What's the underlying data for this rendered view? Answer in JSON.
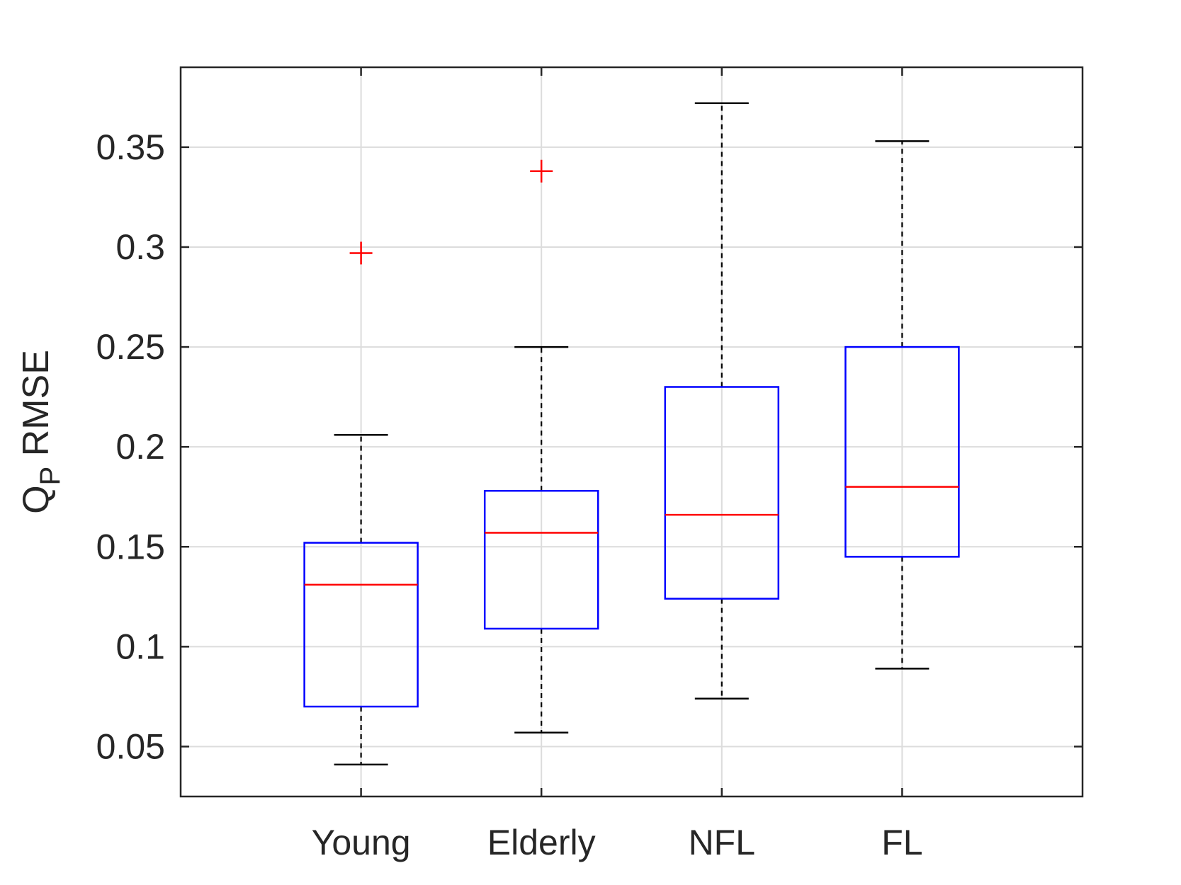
{
  "chart_data": {
    "type": "boxplot",
    "title": "",
    "xlabel": "",
    "ylabel": {
      "base": "Q",
      "subscript": "P",
      "rest": " RMSE"
    },
    "ylim": [
      0.025,
      0.39
    ],
    "yticks": [
      0.05,
      0.1,
      0.15,
      0.2,
      0.25,
      0.3,
      0.35
    ],
    "ytick_labels": [
      "0.05",
      "0.1",
      "0.15",
      "0.2",
      "0.25",
      "0.3",
      "0.35"
    ],
    "categories": [
      "Young",
      "Elderly",
      "NFL",
      "FL"
    ],
    "grid": true,
    "boxes": [
      {
        "category": "Young",
        "whisker_low": 0.041,
        "q1": 0.07,
        "median": 0.131,
        "q3": 0.152,
        "whisker_high": 0.206,
        "outliers": [
          0.297
        ]
      },
      {
        "category": "Elderly",
        "whisker_low": 0.057,
        "q1": 0.109,
        "median": 0.157,
        "q3": 0.178,
        "whisker_high": 0.25,
        "outliers": [
          0.338
        ]
      },
      {
        "category": "NFL",
        "whisker_low": 0.074,
        "q1": 0.124,
        "median": 0.166,
        "q3": 0.23,
        "whisker_high": 0.372,
        "outliers": []
      },
      {
        "category": "FL",
        "whisker_low": 0.089,
        "q1": 0.145,
        "median": 0.18,
        "q3": 0.25,
        "whisker_high": 0.353,
        "outliers": []
      }
    ],
    "colors": {
      "box": "#0000ff",
      "median": "#ff0000",
      "outlier": "#ff0000",
      "whisker": "#000000",
      "grid": "#dcdcdc",
      "axis": "#262626"
    }
  }
}
